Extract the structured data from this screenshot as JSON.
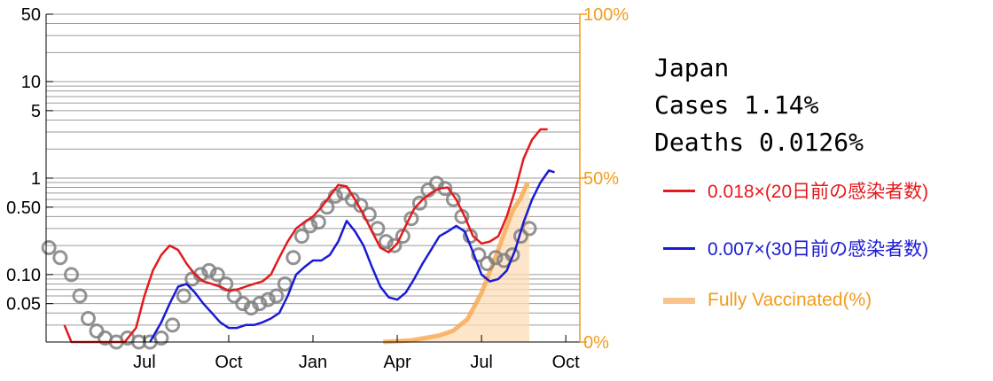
{
  "info": {
    "country": "Japan",
    "cases_label": "Cases 1.14%",
    "deaths_label": "Deaths 0.0126%"
  },
  "legend": [
    {
      "label": "0.018×(20日前の感染者数)",
      "color": "#e31a1c",
      "kind": "line"
    },
    {
      "label": "0.007×(30日前の感染者数)",
      "color": "#1a1ad6",
      "kind": "line"
    },
    {
      "label": "Fully Vaccinated(%)",
      "color": "#f7a84f",
      "kind": "band"
    }
  ],
  "chart_data": {
    "type": "line",
    "title": "",
    "xlabel": "",
    "ylabel": "",
    "x_ticks": [
      {
        "label": "Jul",
        "month": 3.5
      },
      {
        "label": "Oct",
        "month": 6.5
      },
      {
        "label": "Jan",
        "month": 9.5
      },
      {
        "label": "Apr",
        "month": 12.5
      },
      {
        "label": "Jul",
        "month": 15.5
      },
      {
        "label": "Oct",
        "month": 18.5
      }
    ],
    "xlim": [
      0,
      19.0
    ],
    "y_scale": "log",
    "ylim": [
      0.02,
      50
    ],
    "y_ticks": [
      {
        "label": "50",
        "value": 50
      },
      {
        "label": "10",
        "value": 10
      },
      {
        "label": "5",
        "value": 5
      },
      {
        "label": "1",
        "value": 1
      },
      {
        "label": "0.50",
        "value": 0.5
      },
      {
        "label": "0.10",
        "value": 0.1
      },
      {
        "label": "0.05",
        "value": 0.05
      }
    ],
    "y2_ticks": [
      {
        "label": "100%",
        "value": 100
      },
      {
        "label": "50%",
        "value": 50
      },
      {
        "label": "0%",
        "value": 0
      }
    ],
    "y2lim": [
      0,
      100
    ],
    "grid": true,
    "colors": {
      "deaths": "#808080",
      "red": "#e31a1c",
      "blue": "#1a1ad6",
      "vaccine": "#f7a84f",
      "right_axis": "#f39a1e"
    },
    "series": [
      {
        "name": "deaths",
        "kind": "scatter",
        "points": [
          [
            0.1,
            0.19
          ],
          [
            0.5,
            0.15
          ],
          [
            0.9,
            0.1
          ],
          [
            1.2,
            0.06
          ],
          [
            1.5,
            0.035
          ],
          [
            1.8,
            0.026
          ],
          [
            2.1,
            0.022
          ],
          [
            2.5,
            0.02
          ],
          [
            2.9,
            0.022
          ],
          [
            3.3,
            0.02
          ],
          [
            3.7,
            0.02
          ],
          [
            4.1,
            0.022
          ],
          [
            4.5,
            0.03
          ],
          [
            4.9,
            0.06
          ],
          [
            5.2,
            0.09
          ],
          [
            5.5,
            0.1
          ],
          [
            5.8,
            0.11
          ],
          [
            6.1,
            0.1
          ],
          [
            6.4,
            0.08
          ],
          [
            6.7,
            0.06
          ],
          [
            7.0,
            0.05
          ],
          [
            7.3,
            0.045
          ],
          [
            7.6,
            0.05
          ],
          [
            7.9,
            0.055
          ],
          [
            8.2,
            0.06
          ],
          [
            8.5,
            0.08
          ],
          [
            8.8,
            0.15
          ],
          [
            9.1,
            0.25
          ],
          [
            9.4,
            0.32
          ],
          [
            9.7,
            0.35
          ],
          [
            10.0,
            0.5
          ],
          [
            10.3,
            0.65
          ],
          [
            10.6,
            0.7
          ],
          [
            10.9,
            0.6
          ],
          [
            11.2,
            0.52
          ],
          [
            11.5,
            0.42
          ],
          [
            11.8,
            0.3
          ],
          [
            12.1,
            0.22
          ],
          [
            12.4,
            0.2
          ],
          [
            12.7,
            0.25
          ],
          [
            13.0,
            0.38
          ],
          [
            13.3,
            0.55
          ],
          [
            13.6,
            0.75
          ],
          [
            13.9,
            0.88
          ],
          [
            14.2,
            0.78
          ],
          [
            14.5,
            0.6
          ],
          [
            14.8,
            0.4
          ],
          [
            15.1,
            0.25
          ],
          [
            15.4,
            0.16
          ],
          [
            15.7,
            0.13
          ],
          [
            16.0,
            0.15
          ],
          [
            16.3,
            0.14
          ],
          [
            16.6,
            0.16
          ],
          [
            16.9,
            0.25
          ],
          [
            17.2,
            0.3
          ]
        ]
      },
      {
        "name": "0.018×(20日前の感染者数)",
        "kind": "line",
        "points": [
          [
            0.65,
            0.03
          ],
          [
            0.9,
            0.02
          ],
          [
            2.8,
            0.02
          ],
          [
            3.2,
            0.028
          ],
          [
            3.5,
            0.06
          ],
          [
            3.8,
            0.11
          ],
          [
            4.1,
            0.16
          ],
          [
            4.4,
            0.2
          ],
          [
            4.7,
            0.18
          ],
          [
            5.0,
            0.13
          ],
          [
            5.3,
            0.1
          ],
          [
            5.6,
            0.085
          ],
          [
            5.9,
            0.08
          ],
          [
            6.2,
            0.075
          ],
          [
            6.5,
            0.068
          ],
          [
            6.8,
            0.07
          ],
          [
            7.1,
            0.075
          ],
          [
            7.4,
            0.08
          ],
          [
            7.7,
            0.085
          ],
          [
            8.0,
            0.1
          ],
          [
            8.3,
            0.15
          ],
          [
            8.6,
            0.22
          ],
          [
            8.9,
            0.3
          ],
          [
            9.2,
            0.35
          ],
          [
            9.5,
            0.4
          ],
          [
            9.8,
            0.5
          ],
          [
            10.1,
            0.65
          ],
          [
            10.4,
            0.85
          ],
          [
            10.7,
            0.82
          ],
          [
            11.0,
            0.6
          ],
          [
            11.3,
            0.42
          ],
          [
            11.6,
            0.28
          ],
          [
            11.9,
            0.19
          ],
          [
            12.2,
            0.17
          ],
          [
            12.5,
            0.21
          ],
          [
            12.8,
            0.32
          ],
          [
            13.1,
            0.48
          ],
          [
            13.4,
            0.6
          ],
          [
            13.7,
            0.7
          ],
          [
            14.0,
            0.78
          ],
          [
            14.3,
            0.8
          ],
          [
            14.6,
            0.6
          ],
          [
            14.9,
            0.4
          ],
          [
            15.2,
            0.25
          ],
          [
            15.5,
            0.21
          ],
          [
            15.8,
            0.22
          ],
          [
            16.1,
            0.25
          ],
          [
            16.4,
            0.4
          ],
          [
            16.7,
            0.75
          ],
          [
            17.0,
            1.6
          ],
          [
            17.3,
            2.5
          ],
          [
            17.6,
            3.2
          ],
          [
            17.85,
            3.2
          ]
        ]
      },
      {
        "name": "0.007×(30日前の感染者数)",
        "kind": "line",
        "points": [
          [
            3.7,
            0.02
          ],
          [
            4.1,
            0.032
          ],
          [
            4.4,
            0.05
          ],
          [
            4.7,
            0.075
          ],
          [
            5.0,
            0.08
          ],
          [
            5.3,
            0.065
          ],
          [
            5.6,
            0.05
          ],
          [
            5.9,
            0.04
          ],
          [
            6.2,
            0.032
          ],
          [
            6.5,
            0.028
          ],
          [
            6.8,
            0.028
          ],
          [
            7.1,
            0.03
          ],
          [
            7.4,
            0.03
          ],
          [
            7.7,
            0.032
          ],
          [
            8.0,
            0.035
          ],
          [
            8.3,
            0.04
          ],
          [
            8.6,
            0.06
          ],
          [
            8.9,
            0.1
          ],
          [
            9.2,
            0.12
          ],
          [
            9.5,
            0.14
          ],
          [
            9.8,
            0.14
          ],
          [
            10.1,
            0.16
          ],
          [
            10.4,
            0.22
          ],
          [
            10.7,
            0.36
          ],
          [
            11.0,
            0.28
          ],
          [
            11.3,
            0.2
          ],
          [
            11.6,
            0.12
          ],
          [
            11.9,
            0.075
          ],
          [
            12.2,
            0.058
          ],
          [
            12.5,
            0.055
          ],
          [
            12.8,
            0.065
          ],
          [
            13.1,
            0.09
          ],
          [
            13.4,
            0.13
          ],
          [
            13.7,
            0.18
          ],
          [
            14.0,
            0.25
          ],
          [
            14.3,
            0.28
          ],
          [
            14.6,
            0.32
          ],
          [
            14.9,
            0.28
          ],
          [
            15.2,
            0.17
          ],
          [
            15.5,
            0.1
          ],
          [
            15.8,
            0.085
          ],
          [
            16.1,
            0.09
          ],
          [
            16.4,
            0.11
          ],
          [
            16.7,
            0.18
          ],
          [
            17.0,
            0.35
          ],
          [
            17.3,
            0.6
          ],
          [
            17.6,
            0.9
          ],
          [
            17.9,
            1.2
          ],
          [
            18.1,
            1.15
          ]
        ]
      },
      {
        "name": "Fully Vaccinated(%)",
        "kind": "area",
        "axis": "y2",
        "points": [
          [
            12.0,
            0
          ],
          [
            13.0,
            0.5
          ],
          [
            14.0,
            2
          ],
          [
            14.5,
            3.5
          ],
          [
            15.0,
            7
          ],
          [
            15.5,
            15
          ],
          [
            16.0,
            26
          ],
          [
            16.3,
            33
          ],
          [
            16.6,
            40
          ],
          [
            16.9,
            44
          ],
          [
            17.1,
            48
          ],
          [
            17.2,
            48
          ]
        ]
      }
    ]
  }
}
